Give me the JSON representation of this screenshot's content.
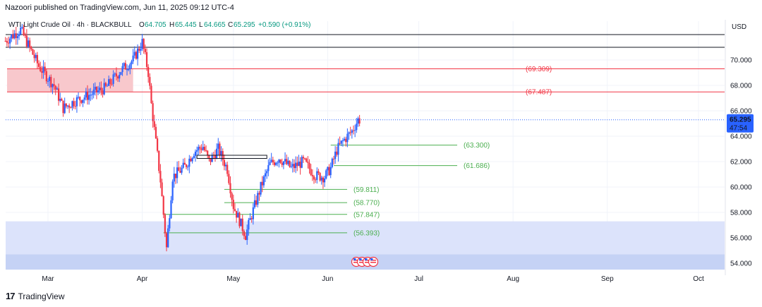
{
  "header": {
    "publisher": "Nazoori published on TradingView.com, Jun 11, 2025 09:12 UTC-4"
  },
  "footer": {
    "brand": "TradingView",
    "logo_text": "17"
  },
  "currency_label": "USD",
  "colors": {
    "up": "#2962ff",
    "down": "#f23645",
    "resistance": "#f23645",
    "support": "#4caf50",
    "resistance_zone": "#f8c8cc",
    "demand_zone": "#dce3fb",
    "demand_zone_lower": "#c5d2f5",
    "price_badge": "#2962ff",
    "price_line": "#2962ff"
  },
  "legend": {
    "symbol": "WTI Light Crude Oil · 4h · BLACKBULL",
    "open_label": "O",
    "open": "64.705",
    "high_label": "H",
    "high": "65.445",
    "low_label": "L",
    "low": "64.665",
    "close_label": "C",
    "close": "65.295",
    "change": "+0.590 (+0.91%)"
  },
  "current_price": {
    "value": "65.295",
    "countdown": "47:54"
  },
  "chart_data": {
    "type": "candlestick",
    "title": "WTI Light Crude Oil · 4h · BLACKBULL",
    "timeframe": "4h",
    "y_axis": {
      "ticks": [
        "54.000",
        "56.000",
        "58.000",
        "60.000",
        "62.000",
        "64.000",
        "66.000",
        "68.000",
        "70.000"
      ],
      "range": [
        53.4,
        72.4
      ]
    },
    "x_axis": {
      "ticks": [
        "Mar",
        "Apr",
        "May",
        "Jun",
        "Jul",
        "Aug",
        "Sep",
        "Oct"
      ]
    },
    "price_path": [
      {
        "date": "2025-02-15",
        "price": 71.5
      },
      {
        "date": "2025-02-20",
        "price": 72.4
      },
      {
        "date": "2025-02-26",
        "price": 69.5
      },
      {
        "date": "2025-03-03",
        "price": 68.0
      },
      {
        "date": "2025-03-06",
        "price": 66.2
      },
      {
        "date": "2025-03-10",
        "price": 66.8
      },
      {
        "date": "2025-03-15",
        "price": 67.3
      },
      {
        "date": "2025-03-20",
        "price": 67.8
      },
      {
        "date": "2025-03-25",
        "price": 69.2
      },
      {
        "date": "2025-03-29",
        "price": 70.0
      },
      {
        "date": "2025-04-01",
        "price": 71.4
      },
      {
        "date": "2025-04-03",
        "price": 69.0
      },
      {
        "date": "2025-04-04",
        "price": 66.5
      },
      {
        "date": "2025-04-07",
        "price": 60.5
      },
      {
        "date": "2025-04-09",
        "price": 55.2
      },
      {
        "date": "2025-04-11",
        "price": 60.8
      },
      {
        "date": "2025-04-15",
        "price": 61.6
      },
      {
        "date": "2025-04-18",
        "price": 62.8
      },
      {
        "date": "2025-04-21",
        "price": 63.2
      },
      {
        "date": "2025-04-23",
        "price": 62.0
      },
      {
        "date": "2025-04-26",
        "price": 63.0
      },
      {
        "date": "2025-04-29",
        "price": 61.4
      },
      {
        "date": "2025-05-01",
        "price": 58.5
      },
      {
        "date": "2025-05-05",
        "price": 56.2
      },
      {
        "date": "2025-05-07",
        "price": 57.8
      },
      {
        "date": "2025-05-10",
        "price": 60.0
      },
      {
        "date": "2025-05-13",
        "price": 61.8
      },
      {
        "date": "2025-05-16",
        "price": 62.3
      },
      {
        "date": "2025-05-20",
        "price": 61.5
      },
      {
        "date": "2025-05-24",
        "price": 62.0
      },
      {
        "date": "2025-05-28",
        "price": 60.9
      },
      {
        "date": "2025-05-31",
        "price": 60.8
      },
      {
        "date": "2025-06-02",
        "price": 61.5
      },
      {
        "date": "2025-06-04",
        "price": 62.9
      },
      {
        "date": "2025-06-06",
        "price": 63.6
      },
      {
        "date": "2025-06-09",
        "price": 64.4
      },
      {
        "date": "2025-06-11",
        "price": 65.295
      }
    ],
    "horizontal_levels": [
      {
        "kind": "resistance",
        "value": 69.309,
        "label": "(69.309)"
      },
      {
        "kind": "resistance",
        "value": 67.487,
        "label": "(67.487)"
      },
      {
        "kind": "support",
        "value": 63.3,
        "label": "(63.300)"
      },
      {
        "kind": "support",
        "value": 61.686,
        "label": "(61.686)"
      },
      {
        "kind": "support",
        "value": 59.811,
        "label": "(59.811)"
      },
      {
        "kind": "support",
        "value": 58.77,
        "label": "(58.770)"
      },
      {
        "kind": "support",
        "value": 57.847,
        "label": "(57.847)"
      },
      {
        "kind": "support",
        "value": 56.393,
        "label": "(56.393)"
      }
    ],
    "reference_lines": [
      72.0,
      71.0
    ],
    "zones": [
      {
        "kind": "supply",
        "from": 67.487,
        "to": 69.309
      },
      {
        "kind": "demand",
        "from": 54.7,
        "to": 57.3
      }
    ],
    "grid": true
  }
}
